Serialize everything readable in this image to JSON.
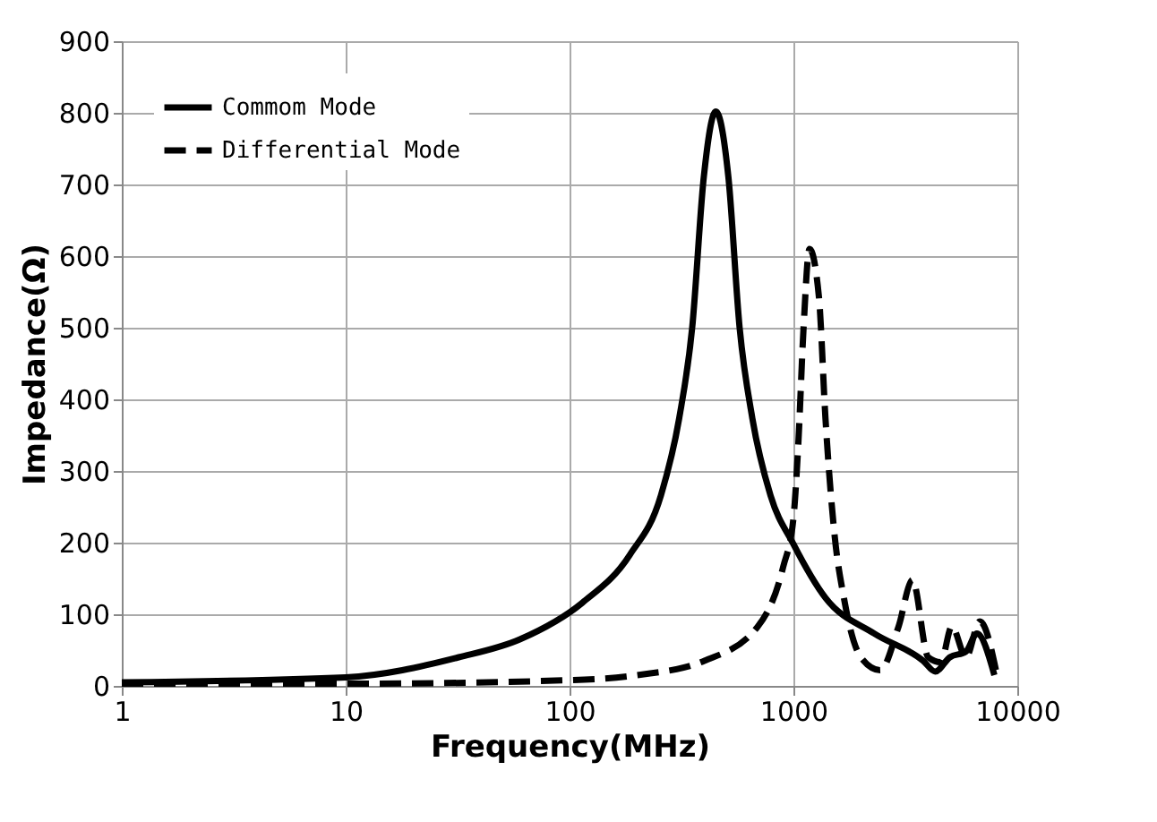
{
  "chart_data": {
    "type": "line",
    "xlabel": "Frequency(MHz)",
    "ylabel": "Impedance(Ω)",
    "log": "x",
    "grid": true,
    "legend": "top left",
    "marker": "none",
    "xlim": [
      1,
      10000
    ],
    "xticks": [
      1,
      10,
      100,
      1000,
      10000
    ],
    "ylim": [
      0,
      900
    ],
    "yticks": [
      0,
      100,
      200,
      300,
      400,
      500,
      600,
      700,
      800,
      900
    ],
    "series": [
      {
        "name": "Commom Mode",
        "color": "#000000",
        "line_style": "solid",
        "x": [
          1,
          10,
          32,
          60,
          114,
          186,
          256,
          309,
          353,
          398,
          450,
          512,
          575,
          655,
          790,
          1000,
          1390,
          2300,
          3800,
          4300,
          5000,
          5900,
          6600,
          7900
        ],
        "values": [
          5,
          12,
          40,
          65,
          116,
          183,
          266,
          374,
          500,
          711,
          802,
          711,
          500,
          374,
          266,
          198,
          123,
          73,
          35,
          20,
          40,
          48,
          73,
          15
        ]
      },
      {
        "name": "Differential Mode",
        "color": "#000000",
        "line_style": "dashed",
        "x": [
          1,
          10,
          100,
          200,
          400,
          690,
          900,
          1000,
          1050,
          1110,
          1180,
          1300,
          1390,
          1530,
          1680,
          2000,
          2440,
          2950,
          3400,
          4000,
          4550,
          5100,
          5900,
          6800,
          8200
        ],
        "values": [
          3,
          3,
          8,
          15,
          35,
          82,
          166,
          234,
          334,
          500,
          610,
          543,
          374,
          208,
          123,
          40,
          22,
          83,
          148,
          40,
          33,
          83,
          40,
          90,
          8
        ]
      }
    ]
  }
}
